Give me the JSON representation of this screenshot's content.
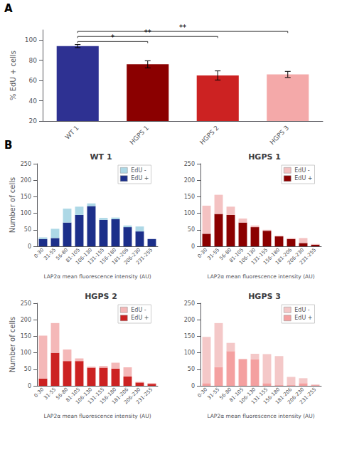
{
  "chart_data": [
    {
      "type": "bar",
      "ylabel": "% EdU + cells",
      "categories": [
        "WT 1",
        "HGPS 1",
        "HGPS 2",
        "HGPS 3"
      ],
      "values": [
        94,
        76,
        65,
        66
      ],
      "errors": [
        1.5,
        3.5,
        4.5,
        3.0
      ],
      "colors": [
        "#2E3192",
        "#8B0000",
        "#CC2222",
        "#F4A9A9"
      ],
      "ylim": [
        20,
        110
      ],
      "yticks": [
        20,
        40,
        60,
        80,
        100
      ],
      "grid": false,
      "annotations": [
        {
          "text": "A"
        },
        {
          "text": "*",
          "x": [
            "WT 1",
            "HGPS 1"
          ],
          "y": 97
        },
        {
          "text": "**",
          "x": [
            "WT 1",
            "HGPS 2"
          ],
          "y": 102
        },
        {
          "text": "**",
          "x": [
            "WT 1",
            "HGPS 3"
          ],
          "y": 107
        }
      ]
    },
    {
      "type": "bar",
      "stacked": true,
      "title": "WT 1",
      "xlabel": "LAP2α mean fluorescence intensity (AU)",
      "ylabel": "Number of cells",
      "categories": [
        "0-30",
        "31-55",
        "56-80",
        "81-105",
        "106-130",
        "131-155",
        "156-180",
        "181-206",
        "206-230",
        "231-255"
      ],
      "series": [
        {
          "name": "EdU +",
          "color": "#1C2F8A",
          "values": [
            22,
            25,
            72,
            95,
            122,
            80,
            82,
            58,
            45,
            22
          ]
        },
        {
          "name": "EdU -",
          "color": "#ADD8E6",
          "values": [
            5,
            28,
            42,
            25,
            8,
            6,
            5,
            5,
            15,
            0
          ]
        }
      ],
      "ylim": [
        0,
        250
      ],
      "yticks": [
        0,
        50,
        100,
        150,
        200,
        250
      ],
      "grid": false,
      "legend": "upper right",
      "annotations": [
        {
          "text": "B"
        }
      ]
    },
    {
      "type": "bar",
      "stacked": true,
      "title": "HGPS 1",
      "xlabel": "LAP2α mean fluorescence intensity (AU)",
      "categories": [
        "0-30",
        "31-55",
        "56-80",
        "81-105",
        "106-130",
        "131-155",
        "156-180",
        "181-206",
        "206-230",
        "231-255"
      ],
      "series": [
        {
          "name": "EdU +",
          "color": "#8B0000",
          "values": [
            38,
            98,
            95,
            72,
            58,
            47,
            30,
            22,
            10,
            5
          ]
        },
        {
          "name": "EdU -",
          "color": "#F4C2C2",
          "values": [
            85,
            58,
            25,
            12,
            5,
            3,
            2,
            3,
            15,
            2
          ]
        }
      ],
      "ylim": [
        0,
        250
      ],
      "yticks": [
        0,
        50,
        100,
        150,
        200,
        250
      ],
      "grid": false,
      "legend": "upper right"
    },
    {
      "type": "bar",
      "stacked": true,
      "title": "HGPS 2",
      "xlabel": "LAP2α mean fluorescence intensity (AU)",
      "ylabel": "Number of cells",
      "categories": [
        "0-30",
        "31-55",
        "56-80",
        "81-105",
        "106-130",
        "131-155",
        "156-180",
        "181-206",
        "206-230",
        "231-255"
      ],
      "series": [
        {
          "name": "EdU +",
          "color": "#CC2222",
          "values": [
            22,
            100,
            75,
            75,
            55,
            55,
            52,
            28,
            10,
            6
          ]
        },
        {
          "name": "EdU -",
          "color": "#F4B8B8",
          "values": [
            130,
            90,
            35,
            8,
            3,
            5,
            18,
            28,
            2,
            2
          ]
        }
      ],
      "ylim": [
        0,
        250
      ],
      "yticks": [
        0,
        50,
        100,
        150,
        200,
        250
      ],
      "grid": false,
      "legend": "upper right"
    },
    {
      "type": "bar",
      "stacked": true,
      "title": "HGPS 3",
      "xlabel": "LAP2α mean fluorescence intensity (AU)",
      "categories": [
        "0-30",
        "31-55",
        "56-80",
        "81-105",
        "106-130",
        "131-155",
        "156-180",
        "181-206",
        "206-230",
        "231-255"
      ],
      "series": [
        {
          "name": "EdU +",
          "color": "#F4A0A0",
          "values": [
            8,
            57,
            105,
            80,
            80,
            8,
            2,
            2,
            8,
            2
          ]
        },
        {
          "name": "EdU -",
          "color": "#F4C8C8",
          "values": [
            140,
            133,
            25,
            2,
            17,
            88,
            88,
            25,
            15,
            2
          ]
        }
      ],
      "ylim": [
        0,
        250
      ],
      "yticks": [
        0,
        50,
        100,
        150,
        200,
        250
      ],
      "grid": false,
      "legend": "upper right"
    }
  ]
}
